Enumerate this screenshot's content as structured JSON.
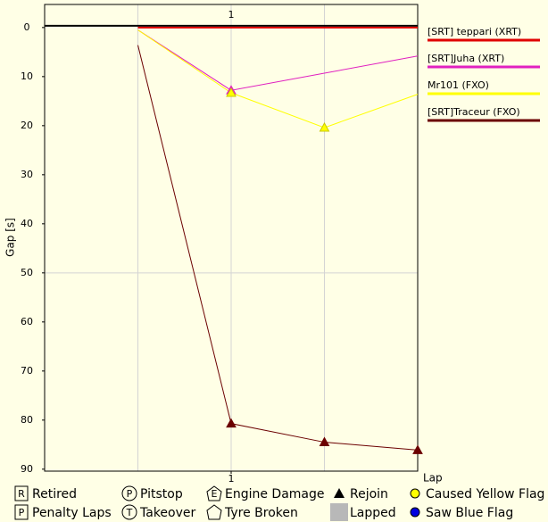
{
  "chart_data": {
    "type": "line",
    "y_label": "Gap [s]",
    "x_label": "Lap",
    "x": [
      0,
      1,
      2,
      3
    ],
    "xlim": [
      -1,
      3
    ],
    "xticks": [
      1
    ],
    "ylim": [
      -4.7,
      90.4
    ],
    "y_inverted": true,
    "yticks": [
      0,
      10,
      20,
      30,
      40,
      50,
      60,
      70,
      80,
      90
    ],
    "grid": true,
    "series": [
      {
        "name": "[SRT] teppari (XRT)",
        "color": "#e00000",
        "values": [
          0,
          0,
          0,
          0
        ],
        "rejoin": []
      },
      {
        "name": "[SRT]Juha (XRT)",
        "color": "#e020c0",
        "values": [
          0.5,
          12.8,
          9.3,
          5.8
        ],
        "rejoin": [
          1
        ]
      },
      {
        "name": "Mr101 (FXO)",
        "color": "#ffff00",
        "values": [
          0.5,
          13.3,
          20.4,
          13.6
        ],
        "rejoin": [
          1,
          2
        ]
      },
      {
        "name": "[SRT]Traceur (FXO)",
        "color": "#6b0000",
        "values": [
          3.6,
          80.7,
          84.5,
          86.1
        ],
        "rejoin": [
          1,
          2,
          3
        ]
      }
    ],
    "event_legend": [
      {
        "label": "Retired",
        "symbol": "R",
        "icon": "box"
      },
      {
        "label": "Penalty Laps",
        "symbol": "P",
        "icon": "box"
      },
      {
        "label": "Pitstop",
        "symbol": "P",
        "icon": "circle"
      },
      {
        "label": "Takeover",
        "symbol": "T",
        "icon": "circle"
      },
      {
        "label": "Engine Damage",
        "symbol": "E",
        "icon": "pentagon"
      },
      {
        "label": "Tyre Broken",
        "icon": "pentagon"
      },
      {
        "label": "Rejoin",
        "icon": "triangle",
        "color": "#000000"
      },
      {
        "label": "Lapped",
        "icon": "square",
        "color": "#b8b8b8"
      },
      {
        "label": "Caused Yellow Flag",
        "icon": "dot",
        "color": "#ffff00"
      },
      {
        "label": "Saw Blue Flag",
        "icon": "dot",
        "color": "#0000e0"
      }
    ]
  }
}
